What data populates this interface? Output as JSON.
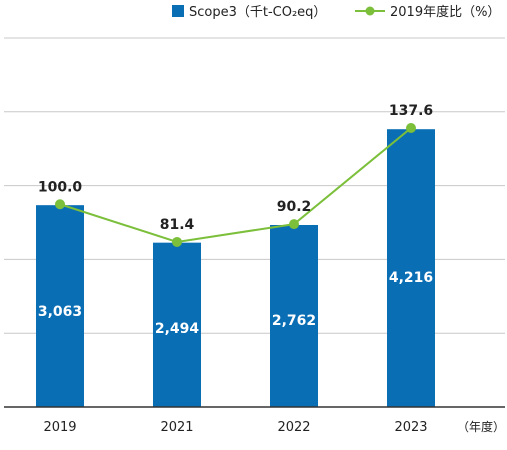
{
  "chart_data": {
    "type": "bar",
    "categories": [
      "2019",
      "2021",
      "2022",
      "2023"
    ],
    "x_unit_label": "（年度）",
    "grid": true,
    "legend_position": "top-right",
    "series": [
      {
        "name": "Scope3（千t-CO₂eq）",
        "type": "bar",
        "color": "#0a6eb5",
        "values": [
          3063,
          2494,
          2762,
          4216
        ],
        "labels": [
          "3,063",
          "2,494",
          "2,762",
          "4,216"
        ]
      },
      {
        "name": "2019年度比（%）",
        "type": "line",
        "color": "#7bbf3a",
        "values": [
          100.0,
          81.4,
          90.2,
          137.6
        ],
        "labels": [
          "100.0",
          "81.4",
          "90.2",
          "137.6"
        ]
      }
    ],
    "bar_axis": {
      "range": [
        0,
        5600
      ]
    },
    "line_axis": {
      "range": [
        0,
        182
      ]
    }
  }
}
